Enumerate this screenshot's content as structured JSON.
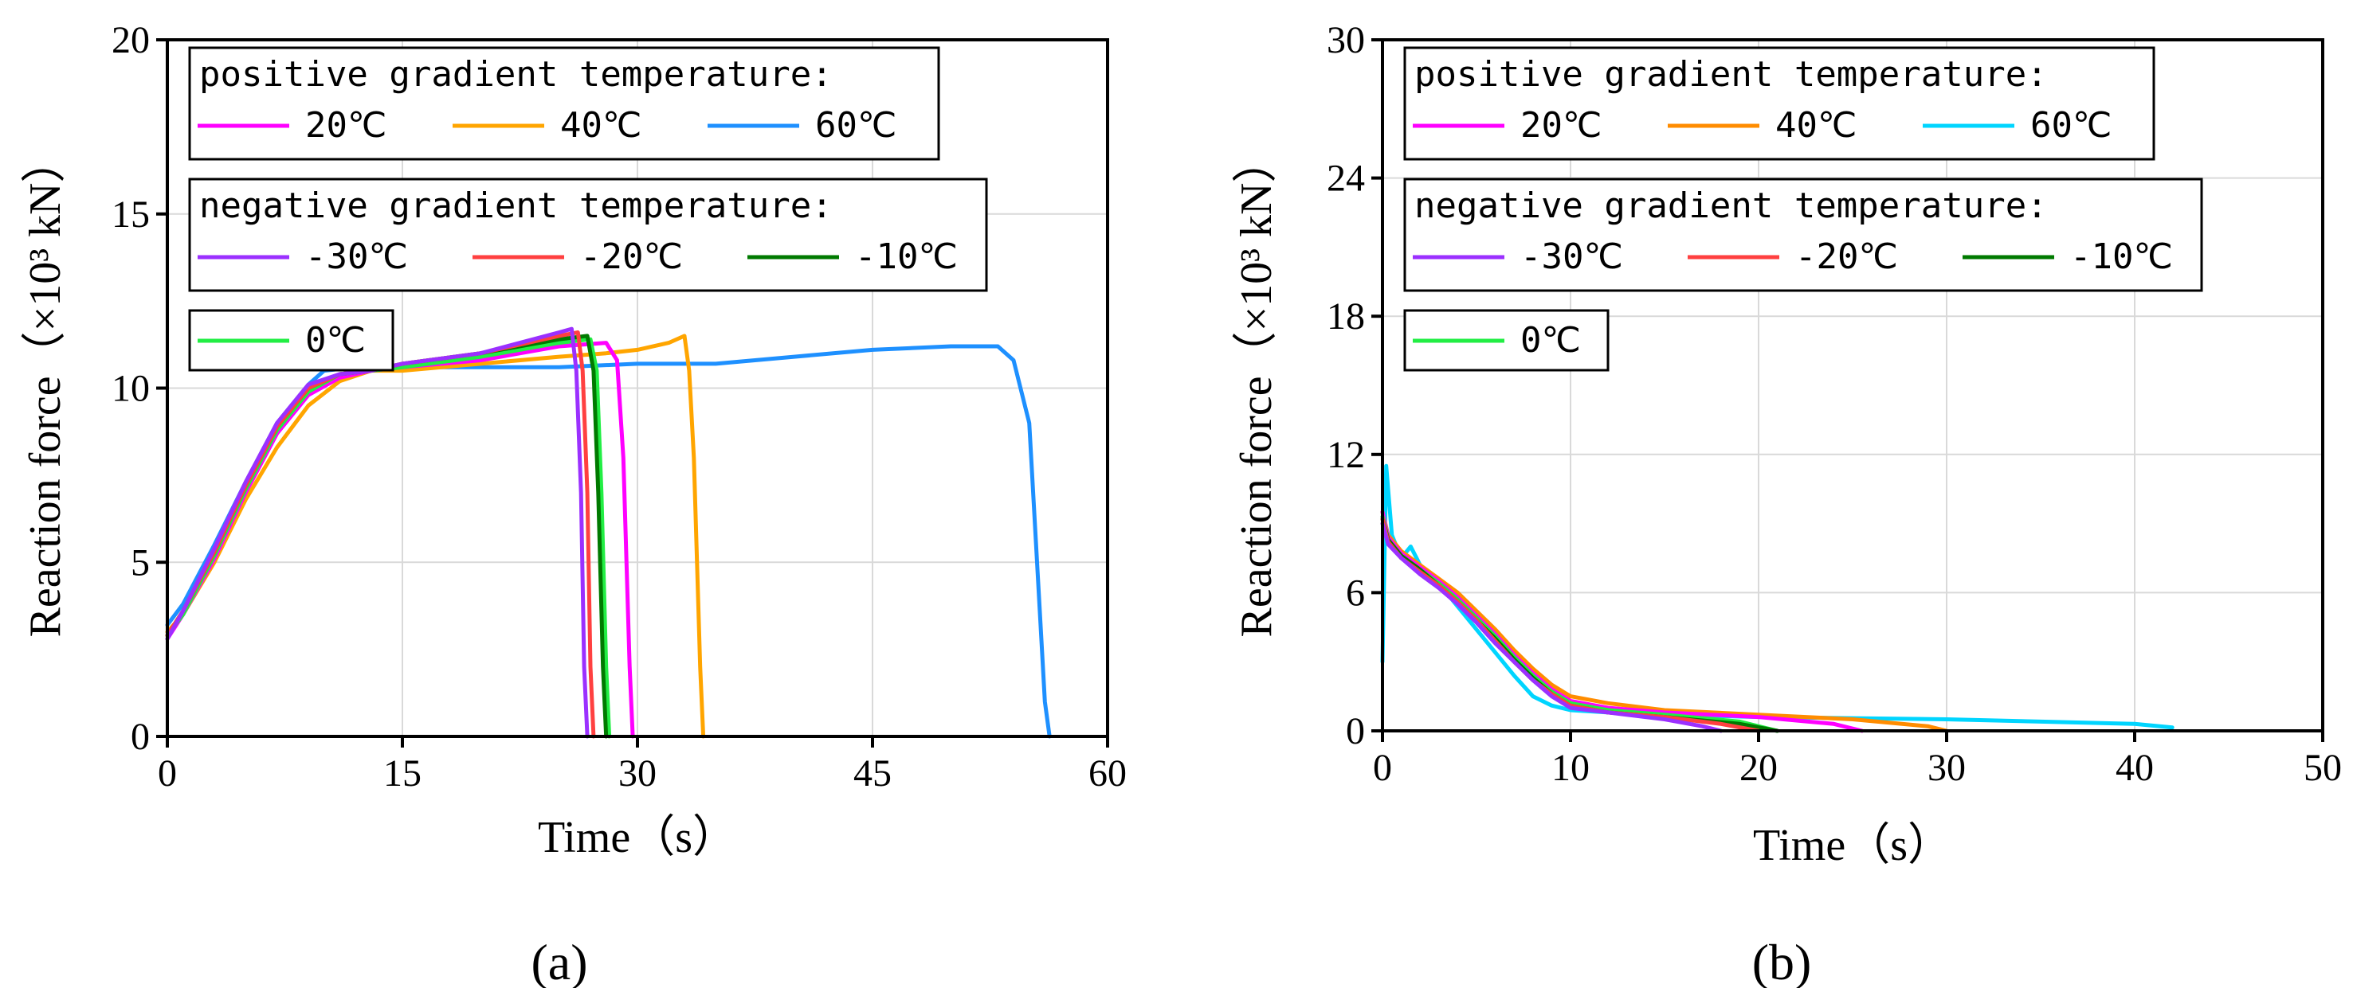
{
  "chart_data": [
    {
      "type": "line",
      "panel_label": "(a)",
      "panel_letter": "a",
      "xlabel": "Time（s）",
      "ylabel": "Reaction force（×10³ kN）",
      "xlim": [
        0,
        60
      ],
      "ylim": [
        0,
        20
      ],
      "xticks": [
        0,
        15,
        30,
        45,
        60
      ],
      "yticks": [
        0,
        5,
        10,
        15,
        20
      ],
      "grid": true,
      "legend_groups": [
        {
          "title": "positive gradient temperature:",
          "entries": [
            "20℃",
            "40℃",
            "60℃"
          ]
        },
        {
          "title": "negative gradient temperature:",
          "entries": [
            "-30℃",
            "-20℃",
            "-10℃"
          ]
        },
        {
          "title": "",
          "entries": [
            "0℃"
          ]
        }
      ],
      "series": [
        {
          "name": "60℃",
          "color": "#1e90ff",
          "x": [
            0,
            1,
            3,
            5,
            7,
            9,
            10,
            12,
            15,
            20,
            25,
            30,
            35,
            40,
            45,
            50,
            53,
            54,
            55,
            55.5,
            56,
            56.3
          ],
          "y": [
            3.2,
            3.8,
            5.5,
            7.3,
            9.0,
            10.1,
            10.5,
            10.6,
            10.6,
            10.6,
            10.6,
            10.7,
            10.7,
            10.9,
            11.1,
            11.2,
            11.2,
            10.8,
            9.0,
            5.0,
            1.0,
            0
          ]
        },
        {
          "name": "40℃",
          "color": "#ffa500",
          "x": [
            0,
            1,
            3,
            5,
            7,
            9,
            11,
            13,
            15,
            20,
            25,
            28,
            30,
            32,
            33,
            33.3,
            33.6,
            34,
            34.2
          ],
          "y": [
            3.0,
            3.5,
            5.0,
            6.8,
            8.3,
            9.5,
            10.2,
            10.5,
            10.5,
            10.7,
            10.9,
            11.0,
            11.1,
            11.3,
            11.5,
            10.5,
            8.0,
            2.0,
            0
          ]
        },
        {
          "name": "20℃",
          "color": "#ff00ff",
          "x": [
            0,
            1,
            3,
            5,
            7,
            9,
            11,
            13,
            15,
            20,
            25,
            28,
            28.7,
            29.1,
            29.5,
            29.7
          ],
          "y": [
            2.8,
            3.5,
            5.1,
            7.0,
            8.7,
            9.8,
            10.3,
            10.5,
            10.6,
            10.8,
            11.2,
            11.3,
            10.8,
            8.0,
            2.0,
            0
          ]
        },
        {
          "name": "0℃",
          "color": "#22ee44",
          "x": [
            0,
            1,
            3,
            5,
            7,
            9,
            11,
            13,
            15,
            20,
            25,
            27,
            27.4,
            27.7,
            28.0,
            28.2
          ],
          "y": [
            2.9,
            3.5,
            5.2,
            7.1,
            8.8,
            9.9,
            10.4,
            10.5,
            10.6,
            10.9,
            11.3,
            11.4,
            10.5,
            7.0,
            2.0,
            0
          ]
        },
        {
          "name": "-10℃",
          "color": "#007a00",
          "x": [
            0,
            1,
            3,
            5,
            7,
            9,
            11,
            13,
            15,
            20,
            25,
            26.8,
            27.2,
            27.5,
            27.8,
            28.0
          ],
          "y": [
            2.9,
            3.6,
            5.3,
            7.2,
            8.9,
            10.0,
            10.4,
            10.5,
            10.7,
            11.0,
            11.4,
            11.5,
            10.5,
            7.0,
            2.0,
            0
          ]
        },
        {
          "name": "-20℃",
          "color": "#ff4040",
          "x": [
            0,
            1,
            3,
            5,
            7,
            9,
            11,
            13,
            15,
            20,
            25,
            26.2,
            26.5,
            26.8,
            27.0,
            27.2
          ],
          "y": [
            2.9,
            3.6,
            5.3,
            7.2,
            8.9,
            10.0,
            10.4,
            10.5,
            10.7,
            11.0,
            11.5,
            11.6,
            10.5,
            7.0,
            2.0,
            0
          ]
        },
        {
          "name": "-30℃",
          "color": "#9b30ff",
          "x": [
            0,
            1,
            3,
            5,
            7,
            9,
            11,
            13,
            15,
            20,
            25,
            25.8,
            26.1,
            26.4,
            26.6,
            26.8
          ],
          "y": [
            2.8,
            3.6,
            5.4,
            7.3,
            9.0,
            10.1,
            10.4,
            10.5,
            10.7,
            11.0,
            11.6,
            11.7,
            10.5,
            7.0,
            2.0,
            0
          ]
        }
      ]
    },
    {
      "type": "line",
      "panel_label": "(b)",
      "panel_letter": "b",
      "xlabel": "Time（s）",
      "ylabel": "Reaction force（×10³ kN）",
      "xlim": [
        0,
        50
      ],
      "ylim": [
        0,
        30
      ],
      "xticks": [
        0,
        10,
        20,
        30,
        40,
        50
      ],
      "yticks": [
        0,
        6,
        12,
        18,
        24,
        30
      ],
      "grid": true,
      "legend_groups": [
        {
          "title": "positive gradient temperature:",
          "entries": [
            "20℃",
            "40℃",
            "60℃"
          ]
        },
        {
          "title": "negative gradient temperature:",
          "entries": [
            "-30℃",
            "-20℃",
            "-10℃"
          ]
        },
        {
          "title": "",
          "entries": [
            "0℃"
          ]
        }
      ],
      "series": [
        {
          "name": "60℃",
          "color": "#00d5ff",
          "x": [
            0,
            0.2,
            0.5,
            1,
            1.5,
            2,
            3,
            4,
            5,
            6,
            7,
            8,
            9,
            10,
            12,
            15,
            20,
            25,
            30,
            35,
            40,
            42
          ],
          "y": [
            3,
            11.5,
            8.5,
            7.5,
            8.0,
            7.2,
            6.4,
            5.4,
            4.4,
            3.4,
            2.4,
            1.5,
            1.1,
            0.9,
            0.8,
            0.7,
            0.6,
            0.55,
            0.5,
            0.4,
            0.3,
            0.15
          ]
        },
        {
          "name": "40℃",
          "color": "#ff8c00",
          "x": [
            0,
            0.3,
            1,
            2,
            3,
            4,
            5,
            6,
            7,
            8,
            9,
            10,
            12,
            15,
            20,
            25,
            29,
            30
          ],
          "y": [
            9.5,
            8.5,
            7.8,
            7.2,
            6.6,
            6.0,
            5.2,
            4.4,
            3.5,
            2.7,
            2.0,
            1.5,
            1.2,
            0.9,
            0.7,
            0.5,
            0.2,
            0
          ]
        },
        {
          "name": "20℃",
          "color": "#ff00ff",
          "x": [
            0,
            0.3,
            1,
            2,
            3,
            4,
            5,
            6,
            7,
            8,
            9,
            10,
            12,
            15,
            20,
            24,
            25.5
          ],
          "y": [
            9.5,
            8.4,
            7.7,
            7.1,
            6.5,
            5.8,
            5.0,
            4.2,
            3.3,
            2.5,
            1.8,
            1.3,
            1.0,
            0.8,
            0.6,
            0.3,
            0
          ]
        },
        {
          "name": "0℃",
          "color": "#22ee44",
          "x": [
            0,
            0.3,
            1,
            2,
            3,
            4,
            5,
            6,
            7,
            8,
            9,
            10,
            12,
            15,
            19,
            21
          ],
          "y": [
            9.3,
            8.3,
            7.6,
            7.0,
            6.4,
            5.7,
            4.9,
            4.1,
            3.2,
            2.4,
            1.7,
            1.2,
            0.9,
            0.7,
            0.4,
            0
          ]
        },
        {
          "name": "-10℃",
          "color": "#007a00",
          "x": [
            0,
            0.3,
            1,
            2,
            3,
            4,
            5,
            6,
            7,
            8,
            9,
            10,
            12,
            15,
            19,
            21
          ],
          "y": [
            9.2,
            8.3,
            7.6,
            7.0,
            6.3,
            5.6,
            4.8,
            4.0,
            3.1,
            2.3,
            1.6,
            1.1,
            0.8,
            0.6,
            0.3,
            0
          ]
        },
        {
          "name": "-20℃",
          "color": "#ff4040",
          "x": [
            0,
            0.3,
            1,
            2,
            3,
            4,
            5,
            6,
            7,
            8,
            9,
            10,
            12,
            15,
            18,
            20
          ],
          "y": [
            9.2,
            8.2,
            7.5,
            6.9,
            6.3,
            5.6,
            4.8,
            3.9,
            3.0,
            2.2,
            1.6,
            1.1,
            0.8,
            0.6,
            0.3,
            0
          ]
        },
        {
          "name": "-30℃",
          "color": "#9b30ff",
          "x": [
            0,
            0.3,
            1,
            2,
            3,
            4,
            5,
            6,
            7,
            8,
            9,
            10,
            12,
            15,
            17,
            18
          ],
          "y": [
            9.0,
            8.1,
            7.5,
            6.8,
            6.2,
            5.5,
            4.7,
            3.8,
            3.0,
            2.2,
            1.5,
            1.0,
            0.8,
            0.5,
            0.2,
            0
          ]
        }
      ]
    }
  ]
}
